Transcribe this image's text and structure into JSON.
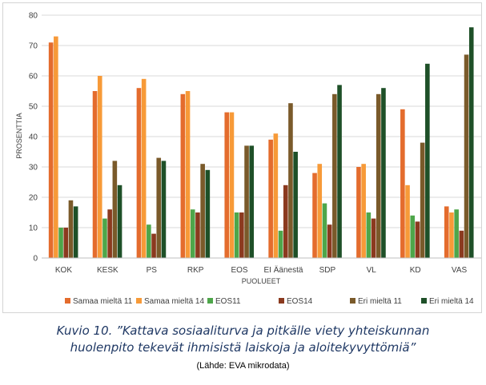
{
  "chart_data": {
    "type": "bar",
    "title": "",
    "ylabel": "PROSENTTIA",
    "xlabel": "PUOLUEET",
    "ylim": [
      0,
      80
    ],
    "yticks": [
      0,
      10,
      20,
      30,
      40,
      50,
      60,
      70,
      80
    ],
    "grid": true,
    "legend_position": "bottom",
    "categories": [
      "KOK",
      "KESK",
      "PS",
      "RKP",
      "EOS",
      "EI Äänestä",
      "SDP",
      "VL",
      "KD",
      "VAS"
    ],
    "series": [
      {
        "name": "Samaa mieltä 11",
        "color": "#e46c2d",
        "values": [
          71,
          55,
          56,
          54,
          48,
          39,
          28,
          30,
          49,
          17
        ]
      },
      {
        "name": "Samaa mieltä 14",
        "color": "#f79a38",
        "values": [
          73,
          60,
          59,
          55,
          48,
          41,
          31,
          31,
          24,
          15
        ]
      },
      {
        "name": "EOS11",
        "color": "#4ea64a",
        "values": [
          10,
          13,
          11,
          16,
          15,
          9,
          18,
          15,
          14,
          16
        ]
      },
      {
        "name": "EOS14",
        "color": "#8b3a1f",
        "values": [
          10,
          16,
          8,
          15,
          15,
          24,
          11,
          13,
          12,
          9
        ]
      },
      {
        "name": "Eri mieltä 11",
        "color": "#7a5a2a",
        "values": [
          19,
          32,
          33,
          31,
          37,
          51,
          54,
          54,
          38,
          67
        ]
      },
      {
        "name": "Eri mieltä 14",
        "color": "#1e5028",
        "values": [
          17,
          24,
          32,
          29,
          37,
          35,
          57,
          56,
          64,
          76
        ]
      }
    ]
  },
  "caption": {
    "line1": "Kuvio 10. ”Kattava sosiaaliturva ja pitkälle viety yhteiskunnan",
    "line2": "huolenpito tekevät ihmisistä laiskoja ja aloitekyvyttömiä”",
    "source": "(Lähde: EVA mikrodata)"
  }
}
